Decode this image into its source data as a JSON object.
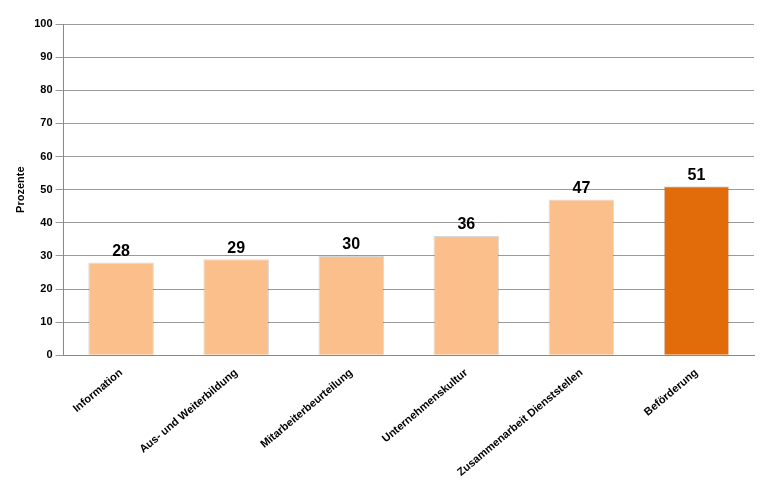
{
  "chart_data": {
    "type": "bar",
    "categories": [
      "Information",
      "Aus- und Weiterbildung",
      "Mitarbeiterbeurteilung",
      "Unternehmenskultur",
      "Zusammenarbeit Dienststellen",
      "Beförderung"
    ],
    "values": [
      28,
      29,
      30,
      36,
      47,
      51
    ],
    "colors": [
      "#fbbf8c",
      "#fbbf8c",
      "#fbbf8c",
      "#fbbf8c",
      "#fbbf8c",
      "#e36c0a"
    ],
    "ylabel": "Prozente",
    "ylim": [
      0,
      100
    ],
    "yticks": [
      0,
      10,
      20,
      30,
      40,
      50,
      60,
      70,
      80,
      90,
      100
    ],
    "grid": true,
    "data_labels": true
  }
}
